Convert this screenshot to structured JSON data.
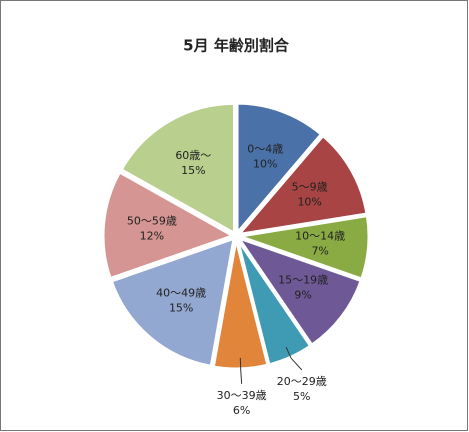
{
  "chart_data": {
    "type": "pie",
    "title": "5月 年齢別割合",
    "categories": [
      "0～4歳",
      "5～9歳",
      "10～14歳",
      "15～19歳",
      "20～29歳",
      "30～39歳",
      "40～49歳",
      "50～59歳",
      "60歳～"
    ],
    "values": [
      10,
      10,
      7,
      9,
      5,
      6,
      15,
      12,
      15
    ],
    "value_labels": [
      "10%",
      "10%",
      "7%",
      "9%",
      "5%",
      "6%",
      "15%",
      "12%",
      "15%"
    ],
    "colors": [
      "#4a72a8",
      "#a84444",
      "#8aaa44",
      "#6e5896",
      "#3f9bb4",
      "#e0853a",
      "#93a8d0",
      "#d49593",
      "#b8cf8e"
    ]
  }
}
